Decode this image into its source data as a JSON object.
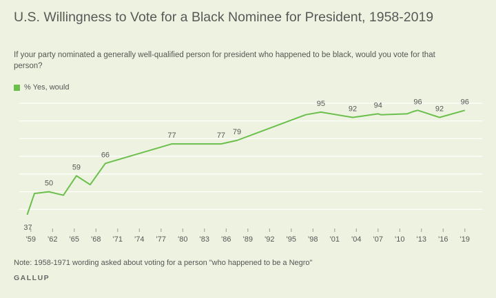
{
  "title": "U.S. Willingness to Vote for a Black Nominee for President, 1958-2019",
  "subtitle": "If your party nominated a generally well-qualified person for president who happened to be black, would you vote for that person?",
  "note": "Note: 1958-1971 wording asked about voting for a person \"who happened to be a Negro\"",
  "brand": "GALLUP",
  "colors": {
    "line": "#6abf4b",
    "grid": "#ffffff",
    "background": "#eef3e1",
    "text": "#555555"
  },
  "chart_data": {
    "type": "line",
    "title": "U.S. Willingness to Vote for a Black Nominee for President, 1958-2019",
    "xlabel": "",
    "ylabel": "",
    "ylim": [
      30,
      100
    ],
    "grid": true,
    "legend_position": "top-left",
    "x_tick_values": [
      1959,
      1962,
      1965,
      1968,
      1971,
      1974,
      1977,
      1980,
      1983,
      1986,
      1989,
      1992,
      1995,
      1998,
      2001,
      2004,
      2007,
      2010,
      2013,
      2016,
      2019
    ],
    "x_tick_labels": [
      "'59",
      "'62",
      "'65",
      "'68",
      "'71",
      "'74",
      "'77",
      "'80",
      "'83",
      "'86",
      "'89",
      "'92",
      "'95",
      "'98",
      "'01",
      "'04",
      "'07",
      "'10",
      "'13",
      "'16",
      "'19"
    ],
    "series": [
      {
        "name": "% Yes, would",
        "color": "#6abf4b",
        "points": [
          {
            "x": 1958.5,
            "y": 37,
            "label": "37"
          },
          {
            "x": 1959.5,
            "y": 49
          },
          {
            "x": 1961.5,
            "y": 50,
            "label": "50"
          },
          {
            "x": 1963.5,
            "y": 48
          },
          {
            "x": 1965.3,
            "y": 59,
            "label": "59"
          },
          {
            "x": 1967.2,
            "y": 54
          },
          {
            "x": 1969.3,
            "y": 66,
            "label": "66"
          },
          {
            "x": 1978.5,
            "y": 77,
            "label": "77"
          },
          {
            "x": 1983.5,
            "y": 77
          },
          {
            "x": 1985.3,
            "y": 77,
            "label": "77"
          },
          {
            "x": 1987.5,
            "y": 79,
            "label": "79"
          },
          {
            "x": 1997.0,
            "y": 93.5
          },
          {
            "x": 1999.1,
            "y": 95,
            "label": "95"
          },
          {
            "x": 2003.5,
            "y": 92,
            "label": "92"
          },
          {
            "x": 2007.0,
            "y": 94,
            "label": "94"
          },
          {
            "x": 2007.4,
            "y": 93.5
          },
          {
            "x": 2011.0,
            "y": 94
          },
          {
            "x": 2012.0,
            "y": 95.5
          },
          {
            "x": 2012.5,
            "y": 96,
            "label": "96"
          },
          {
            "x": 2015.5,
            "y": 92,
            "label": "92"
          },
          {
            "x": 2019.0,
            "y": 96,
            "label": "96"
          }
        ]
      }
    ]
  }
}
